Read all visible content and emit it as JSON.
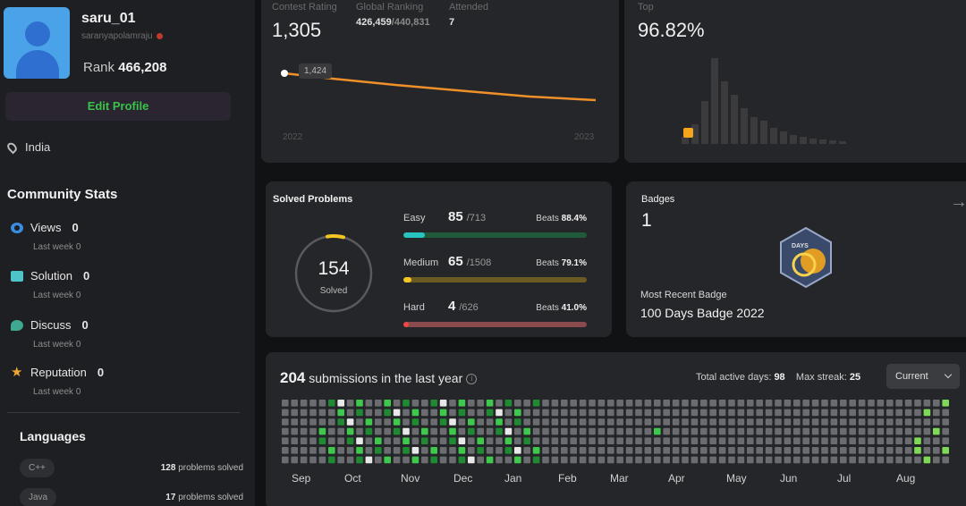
{
  "profile": {
    "username": "saru_01",
    "handle": "saranyapolamraju",
    "rank_label": "Rank",
    "rank_value": "466,208",
    "edit_button": "Edit Profile",
    "location": "India"
  },
  "community": {
    "title": "Community Stats",
    "items": [
      {
        "label": "Views",
        "value": "0",
        "sub": "Last week",
        "sub_value": "0",
        "icon": "eye-icon"
      },
      {
        "label": "Solution",
        "value": "0",
        "sub": "Last week",
        "sub_value": "0",
        "icon": "solution-icon"
      },
      {
        "label": "Discuss",
        "value": "0",
        "sub": "Last week",
        "sub_value": "0",
        "icon": "discuss-icon"
      },
      {
        "label": "Reputation",
        "value": "0",
        "sub": "Last week",
        "sub_value": "0",
        "icon": "star-icon"
      }
    ]
  },
  "languages": {
    "title": "Languages",
    "items": [
      {
        "name": "C++",
        "count": "128",
        "suffix": "problems solved"
      },
      {
        "name": "Java",
        "count": "17",
        "suffix": "problems solved"
      }
    ]
  },
  "contest": {
    "rating_label": "Contest Rating",
    "rating": "1,305",
    "global_label": "Global Ranking",
    "global_rank": "426,459",
    "global_total": "/440,831",
    "attended_label": "Attended",
    "attended": "7",
    "tooltip": "1,424",
    "year_start": "2022",
    "year_end": "2023",
    "line_color": "#f0902a"
  },
  "top": {
    "label": "Top",
    "percent": "96.82%",
    "marker_color": "#f4a51c"
  },
  "solved": {
    "title": "Solved Problems",
    "total": "154",
    "total_label": "Solved",
    "difficulties": [
      {
        "name": "Easy",
        "solved": "85",
        "total": "/713",
        "beats_label": "Beats",
        "beats": "88.4%",
        "fraction": 0.119,
        "color": "#28c4c0",
        "track": "#1f5a3a"
      },
      {
        "name": "Medium",
        "solved": "65",
        "total": "/1508",
        "beats_label": "Beats",
        "beats": "79.1%",
        "fraction": 0.043,
        "color": "#f3c623",
        "track": "#6b5a22"
      },
      {
        "name": "Hard",
        "solved": "4",
        "total": "/626",
        "beats_label": "Beats",
        "beats": "41.0%",
        "fraction": 0.006,
        "color": "#ef4743",
        "track": "#8a4a4e"
      }
    ]
  },
  "badges": {
    "title": "Badges",
    "count": "1",
    "recent_label": "Most Recent Badge",
    "recent_name": "100 Days Badge 2022",
    "badge_text": "DAYS"
  },
  "submissions": {
    "count": "204",
    "text": "submissions in the last year",
    "active_label": "Total active days:",
    "active_value": "98",
    "streak_label": "Max streak:",
    "streak_value": "25",
    "select_value": "Current",
    "months": [
      "Sep",
      "Oct",
      "Nov",
      "Dec",
      "Jan",
      "Feb",
      "Mar",
      "Apr",
      "May",
      "Jun",
      "Jul",
      "Aug"
    ]
  }
}
